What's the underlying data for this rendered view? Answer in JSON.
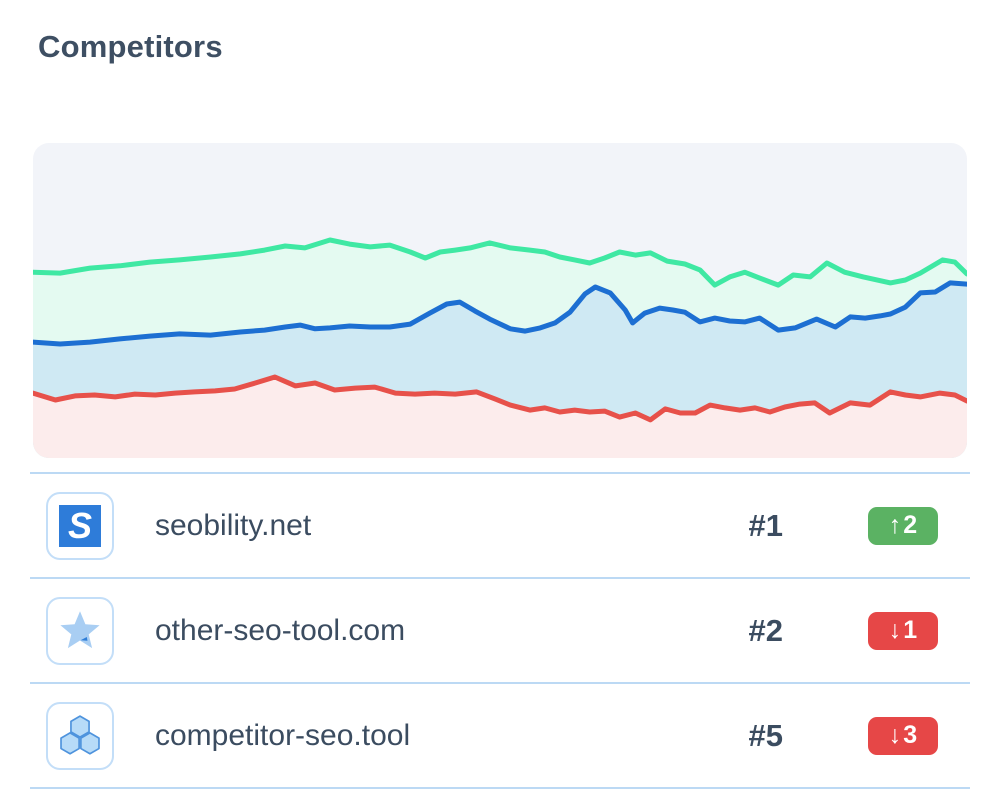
{
  "page": {
    "title": "Competitors"
  },
  "colors": {
    "title": "#3e4f63",
    "text": "#3b4c60",
    "divider": "#bcd9f4",
    "icon_border": "#c3def8",
    "chart_bg": "#f2f4f9",
    "badge_up": "#5bb263",
    "badge_down": "#e64747",
    "seobility_logo_bg": "#2e7cd9",
    "star_fill": "#a9cef3",
    "star_accent": "#2f7ed8",
    "hexagon_fill": "#b7dbf8",
    "hexagon_stroke": "#4e93dd"
  },
  "chart_data": {
    "type": "area",
    "title": "",
    "axes_visible": false,
    "grid": false,
    "legend": "none",
    "xlim_pct": [
      0,
      100
    ],
    "ylim": [
      0,
      100
    ],
    "series": [
      {
        "name": "green",
        "color": "#3fe8a3",
        "fill": "#e4faf1",
        "points": [
          [
            0,
            59
          ],
          [
            2.9,
            58.7
          ],
          [
            6.1,
            60.3
          ],
          [
            9.3,
            61
          ],
          [
            12.5,
            62.2
          ],
          [
            15.7,
            62.9
          ],
          [
            19,
            63.8
          ],
          [
            22.2,
            64.8
          ],
          [
            24.8,
            66
          ],
          [
            27,
            67.3
          ],
          [
            29.1,
            66.7
          ],
          [
            31.8,
            69.2
          ],
          [
            33.9,
            67.9
          ],
          [
            36.1,
            67
          ],
          [
            38.2,
            67.6
          ],
          [
            40.4,
            65.4
          ],
          [
            42,
            63.5
          ],
          [
            43.6,
            65.4
          ],
          [
            45.2,
            66
          ],
          [
            46.8,
            66.7
          ],
          [
            48.9,
            68.3
          ],
          [
            51.1,
            66.7
          ],
          [
            53.2,
            66
          ],
          [
            54.8,
            65.4
          ],
          [
            56.4,
            63.8
          ],
          [
            58,
            62.9
          ],
          [
            59.6,
            61.9
          ],
          [
            61.2,
            63.5
          ],
          [
            62.8,
            65.4
          ],
          [
            64.5,
            64.4
          ],
          [
            66.1,
            65.1
          ],
          [
            67.9,
            62.5
          ],
          [
            69.8,
            61.6
          ],
          [
            71.4,
            59.7
          ],
          [
            73,
            54.9
          ],
          [
            74.6,
            57.5
          ],
          [
            76.2,
            59
          ],
          [
            77.8,
            57.1
          ],
          [
            79.8,
            54.9
          ],
          [
            81.4,
            58.1
          ],
          [
            83.2,
            57.5
          ],
          [
            85,
            61.9
          ],
          [
            86.9,
            59
          ],
          [
            88.9,
            57.5
          ],
          [
            91.8,
            55.6
          ],
          [
            93.4,
            56.5
          ],
          [
            95,
            58.7
          ],
          [
            97.4,
            62.9
          ],
          [
            98.7,
            62.2
          ],
          [
            100,
            58.4
          ]
        ]
      },
      {
        "name": "blue",
        "color": "#1d6fd2",
        "fill": "#cfe9f3",
        "points": [
          [
            0,
            36.8
          ],
          [
            2.9,
            36.2
          ],
          [
            6.1,
            36.8
          ],
          [
            9.3,
            37.8
          ],
          [
            12.5,
            38.7
          ],
          [
            15.7,
            39.4
          ],
          [
            19,
            39
          ],
          [
            22.2,
            40
          ],
          [
            24.8,
            40.6
          ],
          [
            27,
            41.6
          ],
          [
            28.6,
            42.2
          ],
          [
            30.2,
            41
          ],
          [
            31.8,
            41.3
          ],
          [
            33.9,
            41.9
          ],
          [
            36.1,
            41.6
          ],
          [
            38.2,
            41.6
          ],
          [
            40.4,
            42.5
          ],
          [
            42.5,
            46
          ],
          [
            44.3,
            48.9
          ],
          [
            45.7,
            49.5
          ],
          [
            47.3,
            46.7
          ],
          [
            48.9,
            44.1
          ],
          [
            51.1,
            41
          ],
          [
            52.7,
            40.3
          ],
          [
            54.3,
            41.3
          ],
          [
            55.9,
            42.9
          ],
          [
            57.5,
            46.3
          ],
          [
            59.1,
            52.1
          ],
          [
            60.2,
            54.3
          ],
          [
            61.8,
            52.4
          ],
          [
            63.4,
            47
          ],
          [
            64.2,
            42.9
          ],
          [
            65.5,
            46
          ],
          [
            67.1,
            47.6
          ],
          [
            68.5,
            47
          ],
          [
            69.8,
            46.3
          ],
          [
            71.4,
            43.2
          ],
          [
            73,
            44.4
          ],
          [
            74.6,
            43.5
          ],
          [
            76.2,
            43.2
          ],
          [
            77.8,
            44.4
          ],
          [
            79.8,
            40.6
          ],
          [
            81.6,
            41.3
          ],
          [
            83.9,
            44.1
          ],
          [
            85.9,
            41.6
          ],
          [
            87.5,
            44.8
          ],
          [
            89.1,
            44.4
          ],
          [
            90.7,
            45.1
          ],
          [
            91.8,
            45.7
          ],
          [
            93.4,
            47.9
          ],
          [
            95,
            52.4
          ],
          [
            96.6,
            52.7
          ],
          [
            98.2,
            55.6
          ],
          [
            100,
            55.2
          ]
        ]
      },
      {
        "name": "red",
        "color": "#e7514a",
        "fill": "#fcecec",
        "points": [
          [
            0,
            20.6
          ],
          [
            2.4,
            18.4
          ],
          [
            4.5,
            19.7
          ],
          [
            6.6,
            20
          ],
          [
            8.8,
            19.4
          ],
          [
            10.9,
            20.3
          ],
          [
            13.1,
            20
          ],
          [
            15.2,
            20.6
          ],
          [
            17.3,
            21
          ],
          [
            19.5,
            21.3
          ],
          [
            21.6,
            21.9
          ],
          [
            23.8,
            23.8
          ],
          [
            25.9,
            25.7
          ],
          [
            28.1,
            22.9
          ],
          [
            30.2,
            23.8
          ],
          [
            32.3,
            21.6
          ],
          [
            34.5,
            22.2
          ],
          [
            36.6,
            22.5
          ],
          [
            38.8,
            20.6
          ],
          [
            40.9,
            20.3
          ],
          [
            43,
            20.6
          ],
          [
            45.2,
            20.3
          ],
          [
            47.5,
            21
          ],
          [
            49.5,
            18.7
          ],
          [
            51.1,
            16.8
          ],
          [
            53.2,
            15.2
          ],
          [
            54.8,
            15.9
          ],
          [
            56.4,
            14.6
          ],
          [
            58,
            15.2
          ],
          [
            59.6,
            14.6
          ],
          [
            61.2,
            14.9
          ],
          [
            62.8,
            13
          ],
          [
            64.5,
            14.3
          ],
          [
            66.1,
            12.1
          ],
          [
            67.7,
            15.6
          ],
          [
            69.3,
            14.3
          ],
          [
            70.9,
            14.3
          ],
          [
            72.5,
            16.8
          ],
          [
            74.1,
            15.9
          ],
          [
            75.7,
            15.2
          ],
          [
            77.3,
            15.9
          ],
          [
            78.9,
            14.6
          ],
          [
            80.5,
            16.2
          ],
          [
            82.1,
            17.1
          ],
          [
            83.7,
            17.5
          ],
          [
            85.3,
            14.3
          ],
          [
            87.5,
            17.5
          ],
          [
            89.6,
            16.8
          ],
          [
            91.8,
            21
          ],
          [
            93.4,
            20
          ],
          [
            95,
            19.4
          ],
          [
            97.1,
            20.6
          ],
          [
            98.7,
            20
          ],
          [
            100,
            18.1
          ]
        ]
      }
    ]
  },
  "competitors": [
    {
      "domain": "seobility.net",
      "rank": "#1",
      "arrow": "↑",
      "change": "2",
      "direction": "up",
      "icon": "seobility-logo",
      "logo_letter": "S"
    },
    {
      "domain": "other-seo-tool.com",
      "rank": "#2",
      "arrow": "↓",
      "change": "1",
      "direction": "down",
      "icon": "star"
    },
    {
      "domain": "competitor-seo.tool",
      "rank": "#5",
      "arrow": "↓",
      "change": "3",
      "direction": "down",
      "icon": "hexagons"
    }
  ]
}
